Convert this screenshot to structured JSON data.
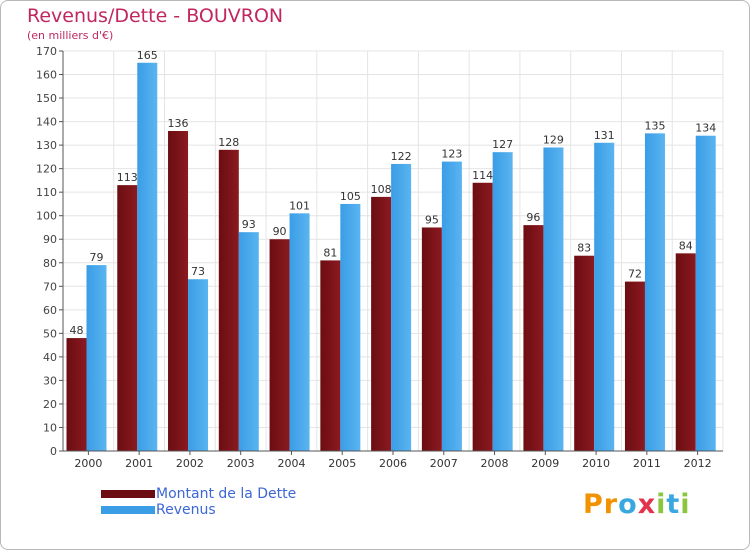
{
  "chart_data": {
    "type": "bar",
    "title": "Revenus/Dette - BOUVRON",
    "subtitle": "(en milliers d'€)",
    "categories": [
      "2000",
      "2001",
      "2002",
      "2003",
      "2004",
      "2005",
      "2006",
      "2007",
      "2008",
      "2009",
      "2010",
      "2011",
      "2012"
    ],
    "series": [
      {
        "name": "Montant de la Dette",
        "color": "#6b0d12",
        "values": [
          48,
          113,
          136,
          128,
          90,
          81,
          108,
          95,
          114,
          96,
          83,
          72,
          84
        ]
      },
      {
        "name": "Revenus",
        "color": "#3a9de6",
        "values": [
          79,
          165,
          73,
          93,
          101,
          105,
          122,
          123,
          127,
          129,
          131,
          135,
          134
        ]
      }
    ],
    "ylim": [
      0,
      170
    ],
    "ytick_step": 10,
    "grid": true,
    "legend": "bottom-left",
    "xlabel": "",
    "ylabel": ""
  },
  "logo": {
    "text": "Proxiti",
    "letters": [
      {
        "ch": "P",
        "color": "#f39200"
      },
      {
        "ch": "r",
        "color": "#f39200"
      },
      {
        "ch": "o",
        "color": "#3aa8e0"
      },
      {
        "ch": "x",
        "color": "#e2334c"
      },
      {
        "ch": "i",
        "color": "#8cc63f"
      },
      {
        "ch": "t",
        "color": "#3aa8e0"
      },
      {
        "ch": "i",
        "color": "#8cc63f"
      }
    ]
  }
}
